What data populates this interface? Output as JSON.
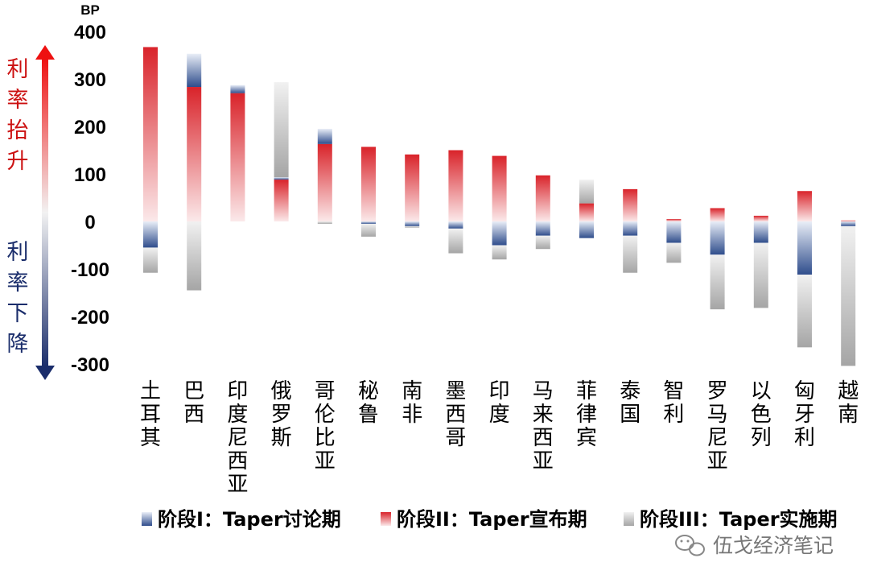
{
  "chart_data": {
    "type": "bar",
    "ylabel": "BP",
    "ylim": [
      -300,
      400
    ],
    "yticks": [
      400,
      300,
      200,
      100,
      0,
      -100,
      -200,
      -300
    ],
    "side_labels": {
      "up": "利率抬升",
      "down": "利率下降"
    },
    "categories": [
      "土耳其",
      "巴西",
      "印度尼西亚",
      "俄罗斯",
      "哥伦比亚",
      "秘鲁",
      "南非",
      "墨西哥",
      "印度",
      "马来西亚",
      "菲律宾",
      "泰国",
      "智利",
      "罗马尼亚",
      "以色列",
      "匈牙利",
      "越南"
    ],
    "series": [
      {
        "name": "阶段I：Taper讨论期",
        "color": "#2f4d8c",
        "values": [
          -55,
          70,
          17,
          5,
          32,
          -5,
          -10,
          -15,
          -50,
          -30,
          -35,
          -30,
          -45,
          -70,
          -45,
          -112,
          -10
        ]
      },
      {
        "name": "阶段II：Taper宣布期",
        "color": "#d9232a",
        "values": [
          367,
          283,
          270,
          88,
          163,
          157,
          141,
          150,
          138,
          97,
          38,
          68,
          5,
          28,
          12,
          64,
          2
        ]
      },
      {
        "name": "阶段III：Taper实施期",
        "color": "#a8a8a8",
        "values": [
          -53,
          -145,
          0,
          200,
          -5,
          -27,
          -3,
          -52,
          -30,
          -28,
          50,
          -78,
          -42,
          -115,
          -137,
          -153,
          -294
        ]
      }
    ],
    "grid": false,
    "legend_position": "bottom"
  },
  "watermark": {
    "text": "伍戈经济笔记",
    "icon": "wechat-icon"
  }
}
